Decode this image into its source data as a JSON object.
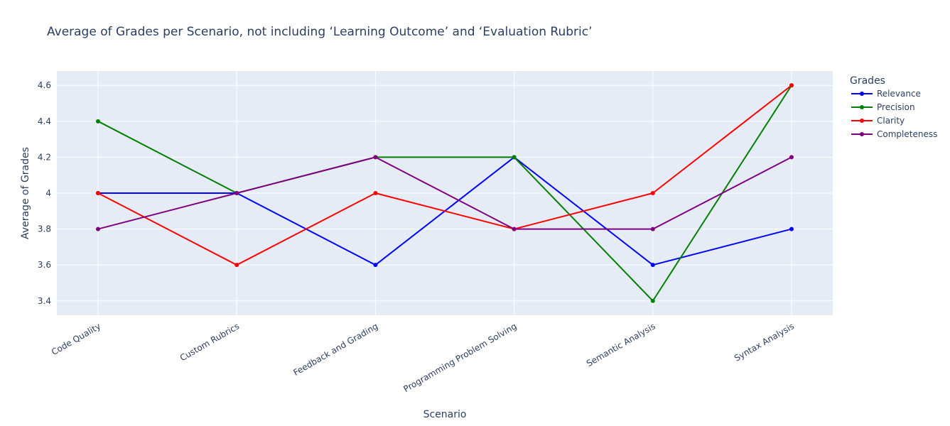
{
  "chart_data": {
    "type": "line",
    "title": "Average of Grades per Scenario, not including ‘Learning Outcome’ and ‘Evaluation Rubric’",
    "xlabel": "Scenario",
    "ylabel": "Average of Grades",
    "categories": [
      "Code Quality",
      "Custom Rubrics",
      "Feedback and Grading",
      "Programming Problem Solving",
      "Semantic Analysis",
      "Syntax Analysis"
    ],
    "ylim": [
      3.32,
      4.68
    ],
    "yticks": [
      3.4,
      3.6,
      3.8,
      4,
      4.2,
      4.4,
      4.6
    ],
    "ytick_labels": [
      "3.4",
      "3.6",
      "3.8",
      "4",
      "4.2",
      "4.4",
      "4.6"
    ],
    "grid": true,
    "legend": {
      "title": "Grades",
      "placement": "top-right"
    },
    "series": [
      {
        "name": "Relevance",
        "color": "#0000ff",
        "values": [
          4.0,
          4.0,
          3.6,
          4.2,
          3.6,
          3.8
        ]
      },
      {
        "name": "Precision",
        "color": "#008000",
        "values": [
          4.4,
          4.0,
          4.2,
          4.2,
          3.4,
          4.6
        ]
      },
      {
        "name": "Clarity",
        "color": "#ff0000",
        "values": [
          4.0,
          3.6,
          4.0,
          3.8,
          4.0,
          4.6
        ]
      },
      {
        "name": "Completeness",
        "color": "#800080",
        "values": [
          3.8,
          4.0,
          4.2,
          3.8,
          3.8,
          4.2
        ]
      }
    ]
  }
}
